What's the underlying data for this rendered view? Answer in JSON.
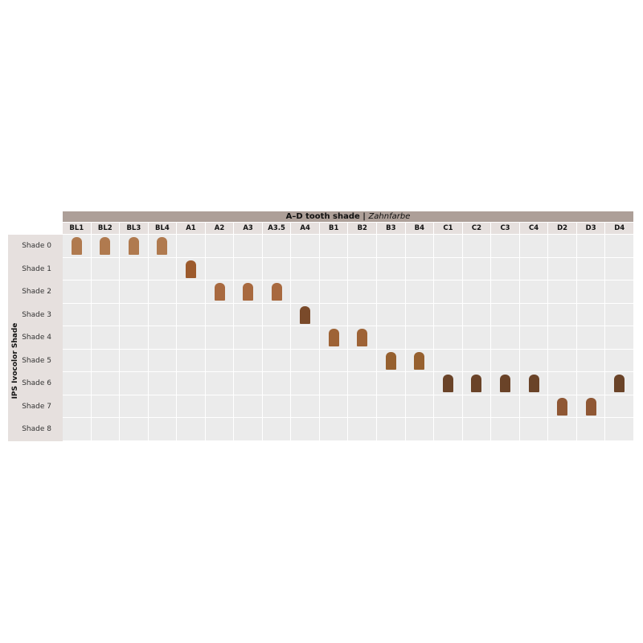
{
  "title": {
    "main": "A–D tooth shade | ",
    "italic": "Zahnfarbe"
  },
  "row_axis_label": "IPS Ivocolor Shade",
  "columns": [
    "BL1",
    "BL2",
    "BL3",
    "BL4",
    "A1",
    "A2",
    "A3",
    "A3.5",
    "A4",
    "B1",
    "B2",
    "B3",
    "B4",
    "C1",
    "C2",
    "C3",
    "C4",
    "D2",
    "D3",
    "D4"
  ],
  "rows": [
    {
      "label": "Shade 0",
      "color": "#b07a4f",
      "columns": [
        "BL1",
        "BL2",
        "BL3",
        "BL4"
      ]
    },
    {
      "label": "Shade 1",
      "color": "#9c5a2c",
      "columns": [
        "A1"
      ]
    },
    {
      "label": "Shade 2",
      "color": "#a8693f",
      "columns": [
        "A2",
        "A3",
        "A3.5"
      ]
    },
    {
      "label": "Shade 3",
      "color": "#7a4a2a",
      "columns": [
        "A4"
      ]
    },
    {
      "label": "Shade 4",
      "color": "#9e6336",
      "columns": [
        "B1",
        "B2"
      ]
    },
    {
      "label": "Shade 5",
      "color": "#96602f",
      "columns": [
        "B3",
        "B4"
      ]
    },
    {
      "label": "Shade 6",
      "color": "#6a4328",
      "columns": [
        "C1",
        "C2",
        "C3",
        "C4",
        "D4"
      ]
    },
    {
      "label": "Shade 7",
      "color": "#8f5734",
      "columns": [
        "D2",
        "D3"
      ]
    },
    {
      "label": "Shade 8",
      "color": "#8f5734",
      "columns": []
    }
  ]
}
